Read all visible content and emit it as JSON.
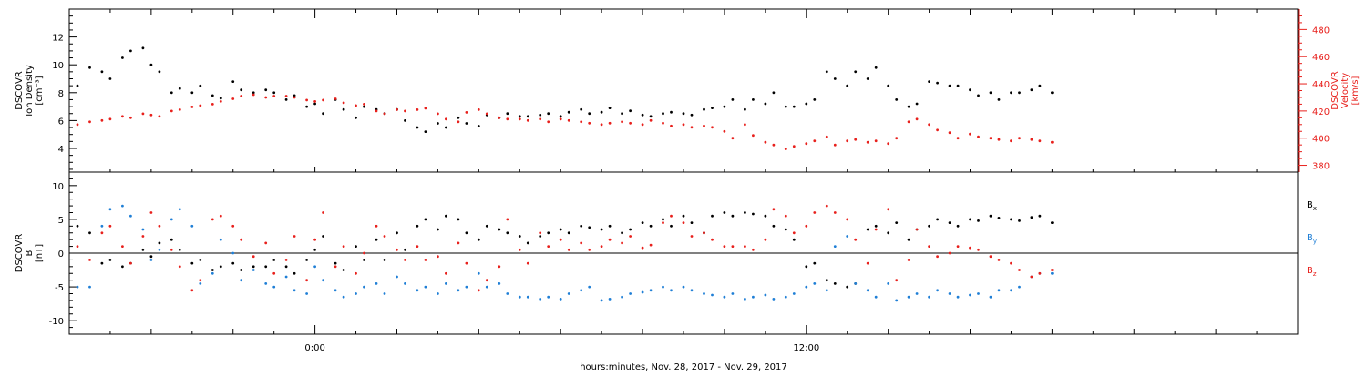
{
  "chart_data": [
    {
      "type": "scatter",
      "panel": "plasma",
      "ylabel_left": [
        "DSCOVR",
        "Ion Density",
        "[cm⁻³]"
      ],
      "ylabel_right": [
        "DSCOVR",
        "Velocity",
        "[km/s]"
      ],
      "x_range_hours": [
        -6,
        24
      ],
      "left_ylim": [
        2.3,
        14
      ],
      "right_ylim": [
        375,
        495
      ],
      "left_ticks": [
        4,
        6,
        8,
        10,
        12
      ],
      "left_tick_labels": [
        "4",
        "6",
        "8",
        "10",
        "12"
      ],
      "right_ticks": [
        380,
        400,
        420,
        440,
        460,
        480
      ],
      "right_tick_labels": [
        "380",
        "400",
        "420",
        "440",
        "460",
        "480"
      ],
      "grid": false,
      "series": [
        {
          "axis": "left",
          "color": "#000000",
          "x": [
            -5.8,
            -5.5,
            -5.2,
            -5.0,
            -4.7,
            -4.5,
            -4.2,
            -4.0,
            -3.8,
            -3.5,
            -3.3,
            -3.0,
            -2.8,
            -2.5,
            -2.3,
            -2.0,
            -1.8,
            -1.5,
            -1.2,
            -1.0,
            -0.7,
            -0.5,
            -0.2,
            0.0,
            0.2,
            0.5,
            0.7,
            1.0,
            1.2,
            1.5,
            1.7,
            2.0,
            2.2,
            2.5,
            2.7,
            3.0,
            3.2,
            3.5,
            3.7,
            4.0,
            4.2,
            4.5,
            4.7,
            5.0,
            5.2,
            5.5,
            5.7,
            6.0,
            6.2,
            6.5,
            6.7,
            7.0,
            7.2,
            7.5,
            7.7,
            8.0,
            8.2,
            8.5,
            8.7,
            9.0,
            9.2,
            9.5,
            9.7,
            10.0,
            10.2,
            10.5,
            10.7,
            11.0,
            11.2,
            11.5,
            11.7,
            12.0,
            12.2,
            12.5,
            12.7,
            13.0,
            13.2,
            13.5,
            13.7,
            14.0,
            14.2,
            14.5,
            14.7,
            15.0,
            15.2,
            15.5,
            15.7,
            16.0,
            16.2,
            16.5,
            16.7,
            17.0,
            17.2,
            17.5,
            17.7,
            18.0
          ],
          "y": [
            8.5,
            9.8,
            9.5,
            9.0,
            10.5,
            11.0,
            11.2,
            10.0,
            9.5,
            8.0,
            8.3,
            8.0,
            8.5,
            7.8,
            7.6,
            8.8,
            8.2,
            8.0,
            8.2,
            8.0,
            7.5,
            7.8,
            7.0,
            7.2,
            6.5,
            7.5,
            6.8,
            6.2,
            7.0,
            6.8,
            6.5,
            6.8,
            6.0,
            5.5,
            5.2,
            5.8,
            5.5,
            6.2,
            5.8,
            5.6,
            6.4,
            6.2,
            6.5,
            6.3,
            6.3,
            6.4,
            6.5,
            6.3,
            6.6,
            6.8,
            6.5,
            6.6,
            6.9,
            6.5,
            6.7,
            6.4,
            6.3,
            6.5,
            6.6,
            6.5,
            6.4,
            6.8,
            6.9,
            7.0,
            7.5,
            6.8,
            7.5,
            7.2,
            8.0,
            7.0,
            7.0,
            7.2,
            7.5,
            9.5,
            9.0,
            8.5,
            9.5,
            9.0,
            9.8,
            8.5,
            7.5,
            7.0,
            7.2,
            8.8,
            8.7,
            8.5,
            8.5,
            8.2,
            7.8,
            8.0,
            7.5,
            8.0,
            8.0,
            8.2,
            8.5,
            8.0
          ]
        },
        {
          "axis": "right",
          "color": "#e8201c",
          "x": [
            -5.8,
            -5.5,
            -5.2,
            -5.0,
            -4.7,
            -4.5,
            -4.2,
            -4.0,
            -3.8,
            -3.5,
            -3.3,
            -3.0,
            -2.8,
            -2.5,
            -2.3,
            -2.0,
            -1.8,
            -1.5,
            -1.2,
            -1.0,
            -0.7,
            -0.5,
            -0.2,
            0.0,
            0.2,
            0.5,
            0.7,
            1.0,
            1.2,
            1.5,
            1.7,
            2.0,
            2.2,
            2.5,
            2.7,
            3.0,
            3.2,
            3.5,
            3.7,
            4.0,
            4.2,
            4.5,
            4.7,
            5.0,
            5.2,
            5.5,
            5.7,
            6.0,
            6.2,
            6.5,
            6.7,
            7.0,
            7.2,
            7.5,
            7.7,
            8.0,
            8.2,
            8.5,
            8.7,
            9.0,
            9.2,
            9.5,
            9.7,
            10.0,
            10.2,
            10.5,
            10.7,
            11.0,
            11.2,
            11.5,
            11.7,
            12.0,
            12.2,
            12.5,
            12.7,
            13.0,
            13.2,
            13.5,
            13.7,
            14.0,
            14.2,
            14.5,
            14.7,
            15.0,
            15.2,
            15.5,
            15.7,
            16.0,
            16.2,
            16.5,
            16.7,
            17.0,
            17.2,
            17.5,
            17.7,
            18.0
          ],
          "y": [
            410,
            412,
            413,
            414,
            416,
            415,
            418,
            417,
            416,
            420,
            421,
            423,
            424,
            425,
            427,
            429,
            431,
            432,
            430,
            431,
            431,
            430,
            428,
            427,
            428,
            429,
            426,
            424,
            425,
            420,
            418,
            421,
            420,
            421,
            422,
            418,
            414,
            412,
            419,
            421,
            418,
            415,
            414,
            414,
            413,
            414,
            412,
            414,
            413,
            412,
            411,
            410,
            411,
            412,
            411,
            410,
            413,
            411,
            409,
            410,
            408,
            409,
            408,
            405,
            400,
            410,
            402,
            397,
            395,
            392,
            394,
            396,
            398,
            401,
            395,
            398,
            399,
            397,
            398,
            396,
            400,
            412,
            414,
            410,
            406,
            404,
            400,
            403,
            401,
            400,
            399,
            398,
            400,
            399,
            398,
            397
          ]
        }
      ]
    },
    {
      "type": "scatter",
      "panel": "magnetic",
      "ylabel_left": [
        "DSCOVR",
        "B",
        "[nT]"
      ],
      "x_range_hours": [
        -6,
        24
      ],
      "ylim": [
        -12,
        12
      ],
      "ticks": [
        -10,
        -5,
        0,
        5,
        10
      ],
      "tick_labels": [
        "-10",
        "-5",
        "0",
        "5",
        "10"
      ],
      "zero_line": true,
      "grid": false,
      "series": [
        {
          "name": "Bx",
          "legend_main": "B",
          "legend_sub": "x",
          "color": "#000000",
          "x": [
            -5.8,
            -5.5,
            -5.2,
            -5.0,
            -4.7,
            -4.5,
            -4.2,
            -4.0,
            -3.8,
            -3.5,
            -3.3,
            -3.0,
            -2.8,
            -2.5,
            -2.3,
            -2.0,
            -1.8,
            -1.5,
            -1.2,
            -1.0,
            -0.7,
            -0.5,
            -0.2,
            0.0,
            0.2,
            0.5,
            0.7,
            1.0,
            1.2,
            1.5,
            1.7,
            2.0,
            2.2,
            2.5,
            2.7,
            3.0,
            3.2,
            3.5,
            3.7,
            4.0,
            4.2,
            4.5,
            4.7,
            5.0,
            5.2,
            5.5,
            5.7,
            6.0,
            6.2,
            6.5,
            6.7,
            7.0,
            7.2,
            7.5,
            7.7,
            8.0,
            8.2,
            8.5,
            8.7,
            9.0,
            9.2,
            9.5,
            9.7,
            10.0,
            10.2,
            10.5,
            10.7,
            11.0,
            11.2,
            11.5,
            11.7,
            12.0,
            12.2,
            12.5,
            12.7,
            13.0,
            13.2,
            13.5,
            13.7,
            14.0,
            14.2,
            14.5,
            14.7,
            15.0,
            15.2,
            15.5,
            15.7,
            16.0,
            16.2,
            16.5,
            16.7,
            17.0,
            17.2,
            17.5,
            17.7,
            18.0
          ],
          "y": [
            4.0,
            3.0,
            -1.5,
            -1.0,
            -2.0,
            -1.5,
            0.5,
            -0.5,
            1.5,
            2.0,
            0.5,
            -1.5,
            -1.0,
            -2.5,
            -2.0,
            -1.5,
            -2.5,
            -2.0,
            -2.0,
            -1.0,
            -2.0,
            -3.0,
            -1.0,
            0.5,
            2.5,
            -1.5,
            -2.5,
            1.0,
            -1.0,
            2.0,
            -1.0,
            3.0,
            0.5,
            4.0,
            5.0,
            3.5,
            5.5,
            5.0,
            3.0,
            2.0,
            4.0,
            3.5,
            3.0,
            2.5,
            1.5,
            2.5,
            3.0,
            3.5,
            3.0,
            4.0,
            3.8,
            3.5,
            4.0,
            3.0,
            3.5,
            4.5,
            4.0,
            5.0,
            4.0,
            5.5,
            4.5,
            3.0,
            5.5,
            6.0,
            5.5,
            6.0,
            5.8,
            5.5,
            4.0,
            3.5,
            2.0,
            -2.0,
            -1.5,
            -4.0,
            -4.5,
            -5.0,
            -4.5,
            3.5,
            4.0,
            3.0,
            4.5,
            2.0,
            3.5,
            4.0,
            5.0,
            4.5,
            4.0,
            5.0,
            4.8,
            5.5,
            5.2,
            5.0,
            4.8,
            5.3,
            5.5,
            4.5
          ]
        },
        {
          "name": "By",
          "legend_main": "B",
          "legend_sub": "y",
          "color": "#1f7fd6",
          "x": [
            -5.8,
            -5.5,
            -5.2,
            -5.0,
            -4.7,
            -4.5,
            -4.2,
            -4.0,
            -3.8,
            -3.5,
            -3.3,
            -3.0,
            -2.8,
            -2.5,
            -2.3,
            -2.0,
            -1.8,
            -1.5,
            -1.2,
            -1.0,
            -0.7,
            -0.5,
            -0.2,
            0.0,
            0.2,
            0.5,
            0.7,
            1.0,
            1.2,
            1.5,
            1.7,
            2.0,
            2.2,
            2.5,
            2.7,
            3.0,
            3.2,
            3.5,
            3.7,
            4.0,
            4.2,
            4.5,
            4.7,
            5.0,
            5.2,
            5.5,
            5.7,
            6.0,
            6.2,
            6.5,
            6.7,
            7.0,
            7.2,
            7.5,
            7.7,
            8.0,
            8.2,
            8.5,
            8.7,
            9.0,
            9.2,
            9.5,
            9.7,
            10.0,
            10.2,
            10.5,
            10.7,
            11.0,
            11.2,
            11.5,
            11.7,
            12.0,
            12.2,
            12.5,
            12.7,
            13.0,
            13.2,
            13.5,
            13.7,
            14.0,
            14.2,
            14.5,
            14.7,
            15.0,
            15.2,
            15.5,
            15.7,
            16.0,
            16.2,
            16.5,
            16.7,
            17.0,
            17.2,
            17.5,
            17.7,
            18.0
          ],
          "y": [
            -5.0,
            -5.0,
            4.0,
            6.5,
            7.0,
            5.5,
            3.5,
            -1.0,
            0.5,
            5.0,
            6.5,
            4.0,
            -4.5,
            -3.0,
            2.0,
            0.0,
            -4.0,
            -2.5,
            -4.5,
            -5.0,
            -3.5,
            -5.5,
            -6.0,
            -2.0,
            -4.0,
            -5.5,
            -6.5,
            -6.0,
            -5.0,
            -4.5,
            -6.0,
            -3.5,
            -4.5,
            -5.5,
            -5.0,
            -6.0,
            -4.5,
            -5.5,
            -5.0,
            -3.0,
            -5.0,
            -4.5,
            -6.0,
            -6.5,
            -6.5,
            -6.8,
            -6.5,
            -6.8,
            -6.0,
            -5.5,
            -5.0,
            -7.0,
            -6.8,
            -6.5,
            -6.0,
            -5.8,
            -5.5,
            -5.0,
            -5.5,
            -5.0,
            -5.5,
            -6.0,
            -6.2,
            -6.5,
            -6.0,
            -6.8,
            -6.5,
            -6.2,
            -6.8,
            -6.5,
            -6.0,
            -5.0,
            -4.5,
            -5.5,
            1.0,
            2.5,
            -4.5,
            -5.5,
            -6.5,
            -4.5,
            -7.0,
            -6.5,
            -6.0,
            -6.5,
            -5.5,
            -6.0,
            -6.5,
            -6.2,
            -6.0,
            -6.5,
            -5.5,
            -5.5,
            -5.0,
            -3.5,
            -3.0,
            -3.0
          ]
        },
        {
          "name": "Bz",
          "legend_main": "B",
          "legend_sub": "z",
          "color": "#e8201c",
          "x": [
            -5.8,
            -5.5,
            -5.2,
            -5.0,
            -4.7,
            -4.5,
            -4.2,
            -4.0,
            -3.8,
            -3.5,
            -3.3,
            -3.0,
            -2.8,
            -2.5,
            -2.3,
            -2.0,
            -1.8,
            -1.5,
            -1.2,
            -1.0,
            -0.7,
            -0.5,
            -0.2,
            0.0,
            0.2,
            0.5,
            0.7,
            1.0,
            1.2,
            1.5,
            1.7,
            2.0,
            2.2,
            2.5,
            2.7,
            3.0,
            3.2,
            3.5,
            3.7,
            4.0,
            4.2,
            4.5,
            4.7,
            5.0,
            5.2,
            5.5,
            5.7,
            6.0,
            6.2,
            6.5,
            6.7,
            7.0,
            7.2,
            7.5,
            7.7,
            8.0,
            8.2,
            8.5,
            8.7,
            9.0,
            9.2,
            9.5,
            9.7,
            10.0,
            10.2,
            10.5,
            10.7,
            11.0,
            11.2,
            11.5,
            11.7,
            12.0,
            12.2,
            12.5,
            12.7,
            13.0,
            13.2,
            13.5,
            13.7,
            14.0,
            14.2,
            14.5,
            14.7,
            15.0,
            15.2,
            15.5,
            15.7,
            16.0,
            16.2,
            16.5,
            16.7,
            17.0,
            17.2,
            17.5,
            17.7,
            18.0
          ],
          "y": [
            1.0,
            -1.0,
            3.0,
            4.0,
            1.0,
            -1.5,
            2.5,
            6.0,
            4.0,
            0.5,
            -2.0,
            -5.5,
            -4.0,
            5.0,
            5.5,
            4.0,
            2.0,
            -0.5,
            1.5,
            -3.0,
            -1.0,
            2.5,
            -4.0,
            2.0,
            6.0,
            -2.0,
            1.0,
            -3.0,
            0.0,
            4.0,
            2.5,
            0.5,
            -1.0,
            1.0,
            -1.0,
            -0.5,
            -3.0,
            1.5,
            -1.5,
            -5.5,
            -4.0,
            -2.0,
            5.0,
            0.5,
            -1.5,
            3.0,
            1.0,
            2.0,
            0.5,
            1.5,
            0.5,
            1.0,
            2.0,
            1.5,
            2.5,
            0.8,
            1.2,
            4.5,
            5.5,
            4.5,
            2.5,
            3.0,
            2.0,
            1.0,
            1.0,
            1.0,
            0.5,
            2.0,
            6.5,
            5.5,
            3.0,
            4.0,
            6.0,
            7.0,
            6.0,
            5.0,
            2.0,
            -1.5,
            3.5,
            6.5,
            -4.0,
            -1.0,
            3.5,
            1.0,
            -0.5,
            0.0,
            1.0,
            0.8,
            0.5,
            -0.5,
            -1.0,
            -1.5,
            -2.5,
            -3.5,
            -3.0,
            -2.5
          ]
        }
      ]
    }
  ],
  "x_axis": {
    "ticks_hours": [
      0,
      12
    ],
    "tick_labels": [
      "0:00",
      "12:00"
    ],
    "title": "hours:minutes, Nov. 28, 2017 - Nov. 29, 2017"
  }
}
